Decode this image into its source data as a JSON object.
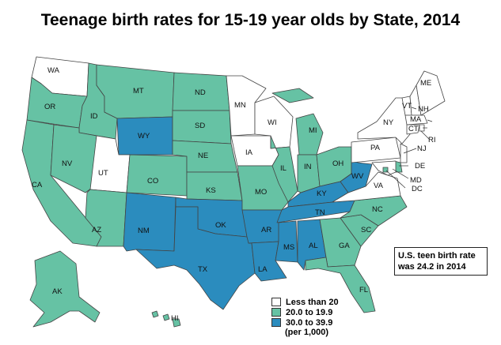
{
  "title": "Teenage birth rates for 15-19 year olds by State, 2014",
  "colors": {
    "low": "#ffffff",
    "mid": "#66c2a4",
    "high": "#2b8cbe",
    "border": "#444444"
  },
  "legend": {
    "items": [
      {
        "label": "Less than 20",
        "class": "low"
      },
      {
        "label": "20.0 to 19.9",
        "class": "mid"
      },
      {
        "label": "30.0 to 39.9",
        "class": "high"
      }
    ],
    "note": "(per 1,000)"
  },
  "callout": {
    "line1": "U.S. teen birth rate",
    "line2": "was 24.2 in 2014"
  },
  "states": {
    "WA": "low",
    "OR": "mid",
    "CA": "mid",
    "ID": "mid",
    "NV": "mid",
    "MT": "mid",
    "WY": "high",
    "UT": "low",
    "AZ": "mid",
    "CO": "mid",
    "NM": "high",
    "ND": "mid",
    "SD": "mid",
    "NE": "mid",
    "KS": "mid",
    "OK": "high",
    "TX": "high",
    "MN": "low",
    "IA": "low",
    "MO": "mid",
    "AR": "high",
    "LA": "high",
    "WI": "low",
    "IL": "mid",
    "MI": "mid",
    "IN": "mid",
    "OH": "mid",
    "KY": "high",
    "TN": "high",
    "MS": "high",
    "AL": "high",
    "GA": "mid",
    "FL": "mid",
    "SC": "mid",
    "NC": "mid",
    "VA": "low",
    "WV": "high",
    "PA": "low",
    "NY": "low",
    "VT": "low",
    "NH": "low",
    "ME": "low",
    "MA": "low",
    "RI": "low",
    "CT": "low",
    "NJ": "low",
    "DE": "mid",
    "MD": "low",
    "DC": "mid",
    "AK": "mid",
    "HI": "mid"
  }
}
